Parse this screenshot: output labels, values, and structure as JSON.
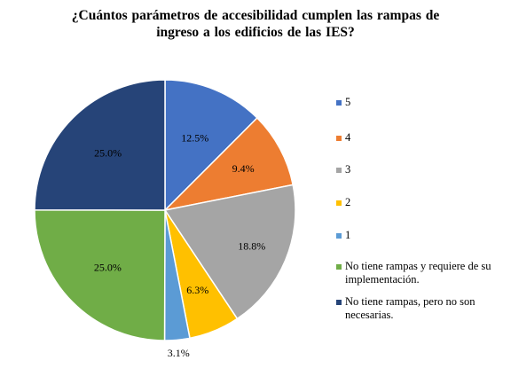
{
  "chart_data": {
    "type": "pie",
    "title_lines": [
      "¿Cuántos parámetros de accesibilidad cumplen las rampas de",
      "ingreso a los edificios de las IES?"
    ],
    "categories": [
      "5",
      "4",
      "3",
      "2",
      "1",
      "No tiene rampas y requiere de su implementación.",
      "No tiene rampas, pero no son necesarias."
    ],
    "values": [
      12.5,
      9.4,
      18.8,
      6.3,
      3.1,
      25.0,
      25.0
    ],
    "data_labels": [
      "12.5%",
      "9.4%",
      "18.8%",
      "6.3%",
      "3.1%",
      "25.0%",
      "25.0%"
    ],
    "colors": [
      "#4472C4",
      "#ED7D31",
      "#A5A5A5",
      "#FFC000",
      "#5B9BD5",
      "#70AD47",
      "#264478"
    ],
    "legend_position": "right",
    "start_angle": "top, clockwise"
  }
}
